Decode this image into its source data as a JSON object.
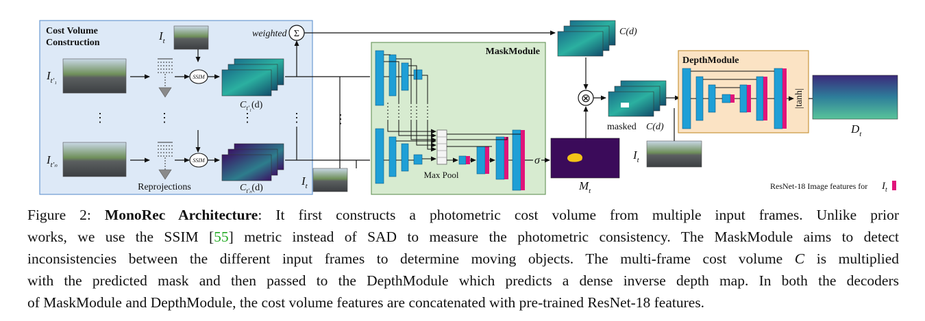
{
  "figure": {
    "cost_volume": {
      "title_line1": "Cost Volume",
      "title_line2": "Construction",
      "top_frame_label": "I",
      "top_frame_sub": "t",
      "weighted_label": "weighted",
      "sum_symbol": "Σ",
      "ssim_label": "SSIM",
      "frame1_label": "I",
      "frame1_sub": "t′₁",
      "frameN_label": "I",
      "frameN_sub": "t′ₙ",
      "cv1_label": "C",
      "cv1_sub": "t′₁",
      "cv1_arg": "(d)",
      "cvN_label": "C",
      "cvN_sub": "t′ₙ",
      "cvN_arg": "(d)",
      "reprojections_label": "Reprojections",
      "dots": "⋮"
    },
    "mask_module": {
      "title": "MaskModule",
      "maxpool_label": "Max Pool",
      "sigma": "σ",
      "input_label": "I",
      "input_sub": "t",
      "mask_label": "M",
      "mask_sub": "t"
    },
    "center": {
      "cd_label": "C(d)",
      "multiply_symbol": "⊗",
      "masked_label": "masked",
      "masked_cd_label": "C(d)"
    },
    "depth_module": {
      "title": "DepthModule",
      "tanh_label": "|tanh|",
      "input_label": "I",
      "input_sub": "t",
      "output_label": "D",
      "output_sub": "t"
    },
    "legend": {
      "text": "ResNet-18 Image  features for",
      "symbol": "I",
      "symbol_sub": "t"
    },
    "colors": {
      "cost_volume_bg": "#dde9f7",
      "mask_module_bg": "#d7ebd0",
      "depth_module_bg": "#fbe3c4",
      "encoder_blue": "#1f9fd6",
      "resnet_pink": "#e0147a",
      "mask_purple": "#3b0b5a",
      "mask_yellow": "#f2c318"
    }
  },
  "caption": {
    "figure_number": "Figure 2:",
    "title": "MonoRec Architecture",
    "line1_rest": ": It first constructs a photometric cost volume from multiple input frames. Unlike prior",
    "line2_a": "works, we use the SSIM [",
    "ref": "55",
    "line2_b": "] metric instead of SAD to measure the photometric consistency. The MaskModule aims to detect",
    "line3": "inconsistencies between the different input frames to determine moving objects. The multi-frame cost volume",
    "line3_var": "C",
    "line3_end": "is multiplied",
    "line4": "with the predicted mask and then passed to the DepthModule which predicts a dense inverse depth map. In both the decoders",
    "line5": "of MaskModule and DepthModule, the cost volume features are concatenated with pre-trained ResNet-18 features."
  }
}
